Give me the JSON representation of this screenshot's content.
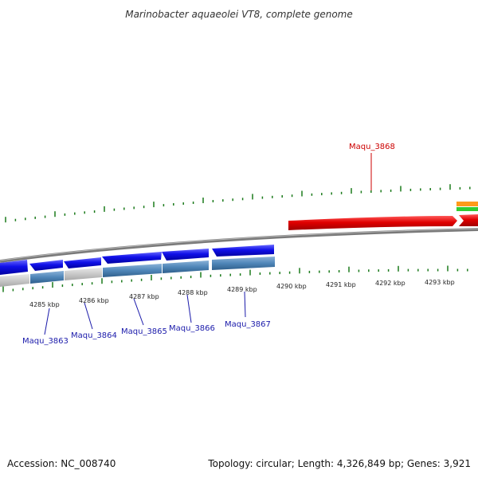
{
  "title": "Marinobacter aquaeolei VT8, complete genome",
  "footer": {
    "accession": "Accession: NC_008740",
    "stats": "Topology: circular; Length: 4,326,849 bp; Genes: 3,921"
  },
  "colors": {
    "cds_forward": "#d90000",
    "cds_reverse": "#1010e0",
    "gene_track": "#4f86b8",
    "other_track": "#c8c8c8",
    "tick": "#1a7a1a",
    "backbone": "#808080",
    "label_forward": "#cc0000",
    "label_reverse": "#1a1aaa"
  },
  "axis": {
    "kbp_labels": [
      "4285 kbp",
      "4286 kbp",
      "4287 kbp",
      "4288 kbp",
      "4289 kbp",
      "4290 kbp",
      "4291 kbp",
      "4292 kbp",
      "4293 kbp"
    ]
  },
  "genes": {
    "forward": [
      {
        "label": "Maqu_3868"
      }
    ],
    "reverse": [
      {
        "label": "Maqu_3863"
      },
      {
        "label": "Maqu_3864"
      },
      {
        "label": "Maqu_3865"
      },
      {
        "label": "Maqu_3866"
      },
      {
        "label": "Maqu_3867"
      }
    ]
  }
}
